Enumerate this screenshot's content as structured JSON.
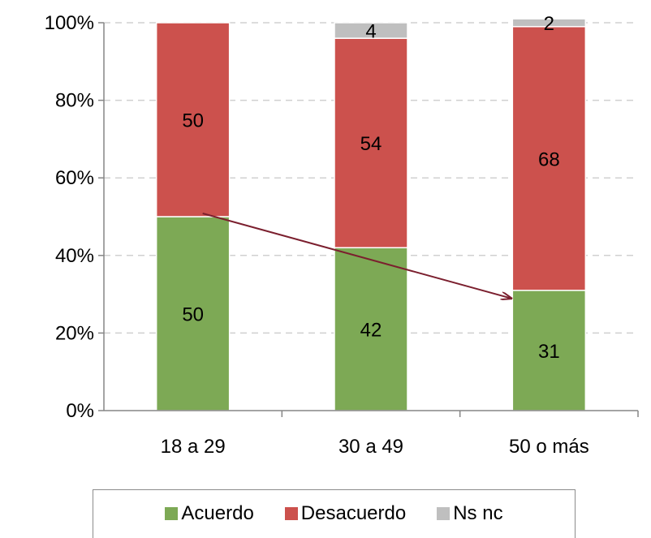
{
  "chart_data": {
    "type": "bar",
    "stacked": true,
    "percent_axis": true,
    "categories": [
      "18 a 29",
      "30 a 49",
      "50 o más"
    ],
    "series": [
      {
        "name": "Acuerdo",
        "values": [
          50,
          42,
          31
        ],
        "color": "#7DA955"
      },
      {
        "name": "Desacuerdo",
        "values": [
          50,
          54,
          68
        ],
        "color": "#CC514D"
      },
      {
        "name": "Ns nc",
        "values": [
          0,
          4,
          2
        ],
        "color": "#BFBFBF"
      }
    ],
    "data_labels": [
      [
        "50",
        "42",
        "31"
      ],
      [
        "50",
        "54",
        "68"
      ],
      [
        "",
        "4",
        "2"
      ]
    ],
    "yticks": [
      "0%",
      "20%",
      "40%",
      "60%",
      "80%",
      "100%"
    ],
    "ylim": [
      0,
      100
    ],
    "grid": true,
    "legend": "bottom",
    "arrow_color": "#7B1F2E",
    "title": "",
    "xlabel": "",
    "ylabel": ""
  }
}
